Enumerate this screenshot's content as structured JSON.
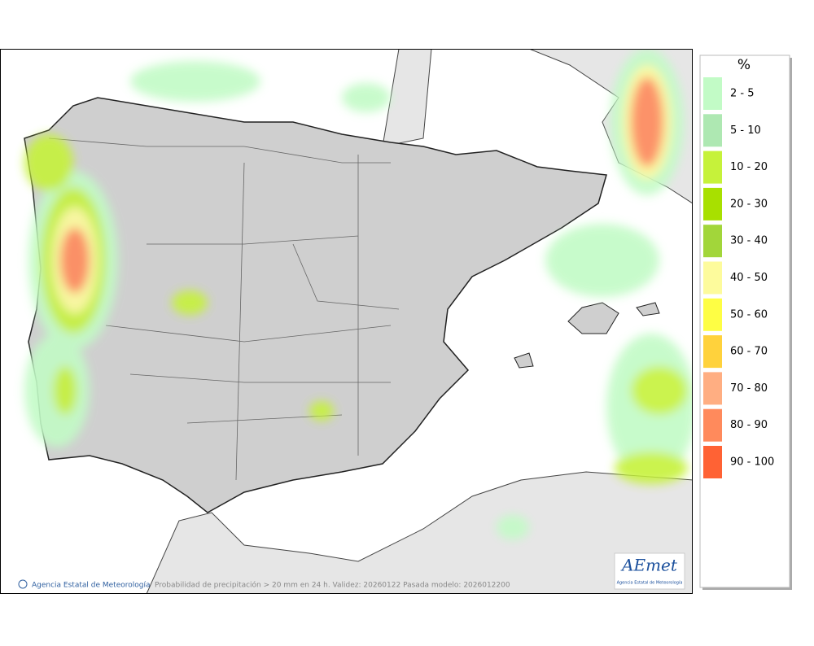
{
  "legend": {
    "title": "%",
    "items": [
      {
        "label": "2 - 5",
        "color": "#c2fbc6"
      },
      {
        "label": "5 - 10",
        "color": "#aee8b2"
      },
      {
        "label": "10 - 20",
        "color": "#c6f23a"
      },
      {
        "label": "20 - 30",
        "color": "#a8e000"
      },
      {
        "label": "30 - 40",
        "color": "#a2d63a"
      },
      {
        "label": "40 - 50",
        "color": "#fdfb9c"
      },
      {
        "label": "50 - 60",
        "color": "#fefe44"
      },
      {
        "label": "60 - 70",
        "color": "#ffd23c"
      },
      {
        "label": "70 - 80",
        "color": "#ffae82"
      },
      {
        "label": "80 - 90",
        "color": "#ff8a5c"
      },
      {
        "label": "90 - 100",
        "color": "#ff6234"
      }
    ]
  },
  "footer": {
    "credit": "Agencia Estatal de Meteorología",
    "caption": "Probabilidad de precipitación > 20 mm en 24 h. Validez: 20260122 Pasada modelo: 2026012200"
  },
  "logo": {
    "name": "AEmet",
    "subtitle": "Agencia Estatal de Meteorología"
  }
}
